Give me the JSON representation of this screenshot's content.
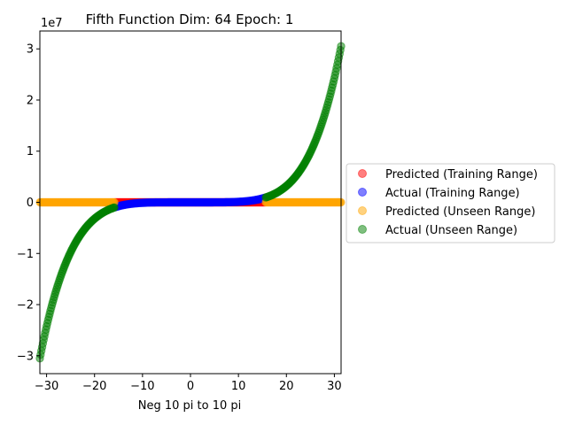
{
  "chart_data": {
    "type": "scatter",
    "title": "Fifth Function Dim: 64 Epoch: 1",
    "xlabel": "Neg 10 pi to 10 pi",
    "ylabel": "",
    "y_offset_label": "1e7",
    "xlim": [
      -31.4,
      31.4
    ],
    "ylim": [
      -3.35,
      3.35
    ],
    "y_scale_factor": 10000000,
    "x_ticks": [
      -30,
      -20,
      -10,
      0,
      10,
      20,
      30
    ],
    "x_tick_labels": [
      "−30",
      "−20",
      "−10",
      "0",
      "10",
      "20",
      "30"
    ],
    "y_ticks": [
      -3,
      -2,
      -1,
      0,
      1,
      2,
      3
    ],
    "y_tick_labels": [
      "−3",
      "−2",
      "−1",
      "0",
      "1",
      "2",
      "3"
    ],
    "training_range": [
      -15.7,
      15.7
    ],
    "full_range": [
      -31.4,
      31.4
    ],
    "series": [
      {
        "name": "Predicted (Training Range)",
        "color": "#ff0000",
        "alpha": 0.5,
        "range": "training",
        "function": "zero"
      },
      {
        "name": "Actual (Training Range)",
        "color": "#0000ff",
        "alpha": 0.5,
        "range": "training",
        "function": "x^5"
      },
      {
        "name": "Predicted (Unseen Range)",
        "color": "#ffa500",
        "alpha": 0.5,
        "range": "unseen",
        "function": "zero"
      },
      {
        "name": "Actual (Unseen Range)",
        "color": "#008000",
        "alpha": 0.5,
        "range": "unseen",
        "function": "x^5"
      }
    ],
    "legend_position": "center-right",
    "grid": false
  }
}
